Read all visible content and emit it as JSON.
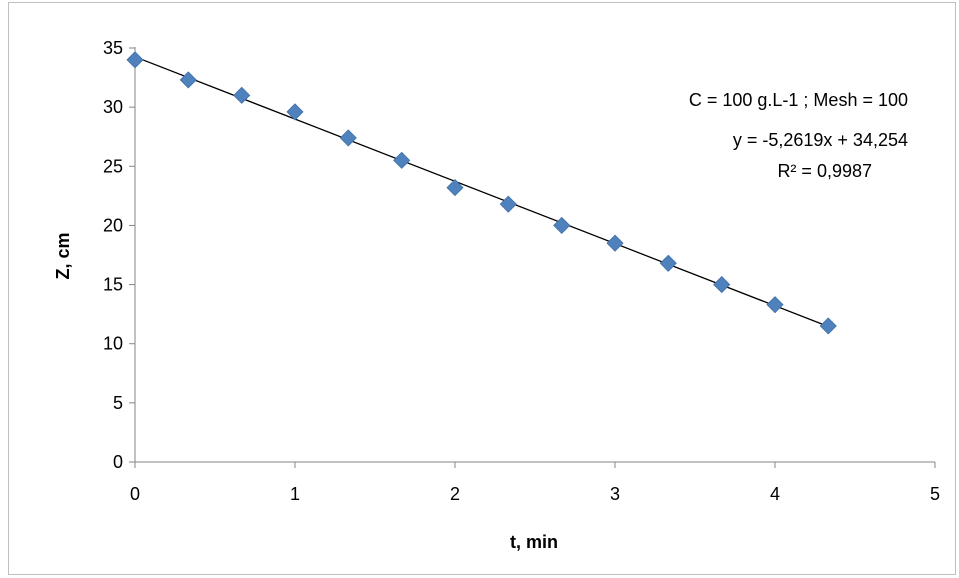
{
  "chart_data": {
    "type": "scatter",
    "title": "",
    "xlabel": "t, min",
    "ylabel": "Z, cm",
    "xlim": [
      0,
      5
    ],
    "ylim": [
      0,
      35
    ],
    "xticks": [
      0,
      1,
      2,
      3,
      4,
      5
    ],
    "yticks": [
      0,
      5,
      10,
      15,
      20,
      25,
      30,
      35
    ],
    "grid": false,
    "legend": "none",
    "series": [
      {
        "marker": "diamond",
        "color": "#4f81bd",
        "x": [
          0,
          0.333,
          0.667,
          1.0,
          1.333,
          1.667,
          2.0,
          2.333,
          2.667,
          3.0,
          3.333,
          3.667,
          4.0,
          4.333
        ],
        "y": [
          34.0,
          32.3,
          31.0,
          29.6,
          27.4,
          25.5,
          23.2,
          21.8,
          20.0,
          18.5,
          16.8,
          15.0,
          13.3,
          11.5
        ]
      }
    ],
    "trendline": {
      "type": "linear",
      "slope": -5.2619,
      "intercept": 34.254,
      "x_range": [
        0,
        4.333
      ],
      "color": "#000000"
    },
    "annotations": [
      "C = 100 g.L-1 ; Mesh = 100",
      "y = -5,2619x + 34,254",
      "R² = 0,9987"
    ]
  }
}
